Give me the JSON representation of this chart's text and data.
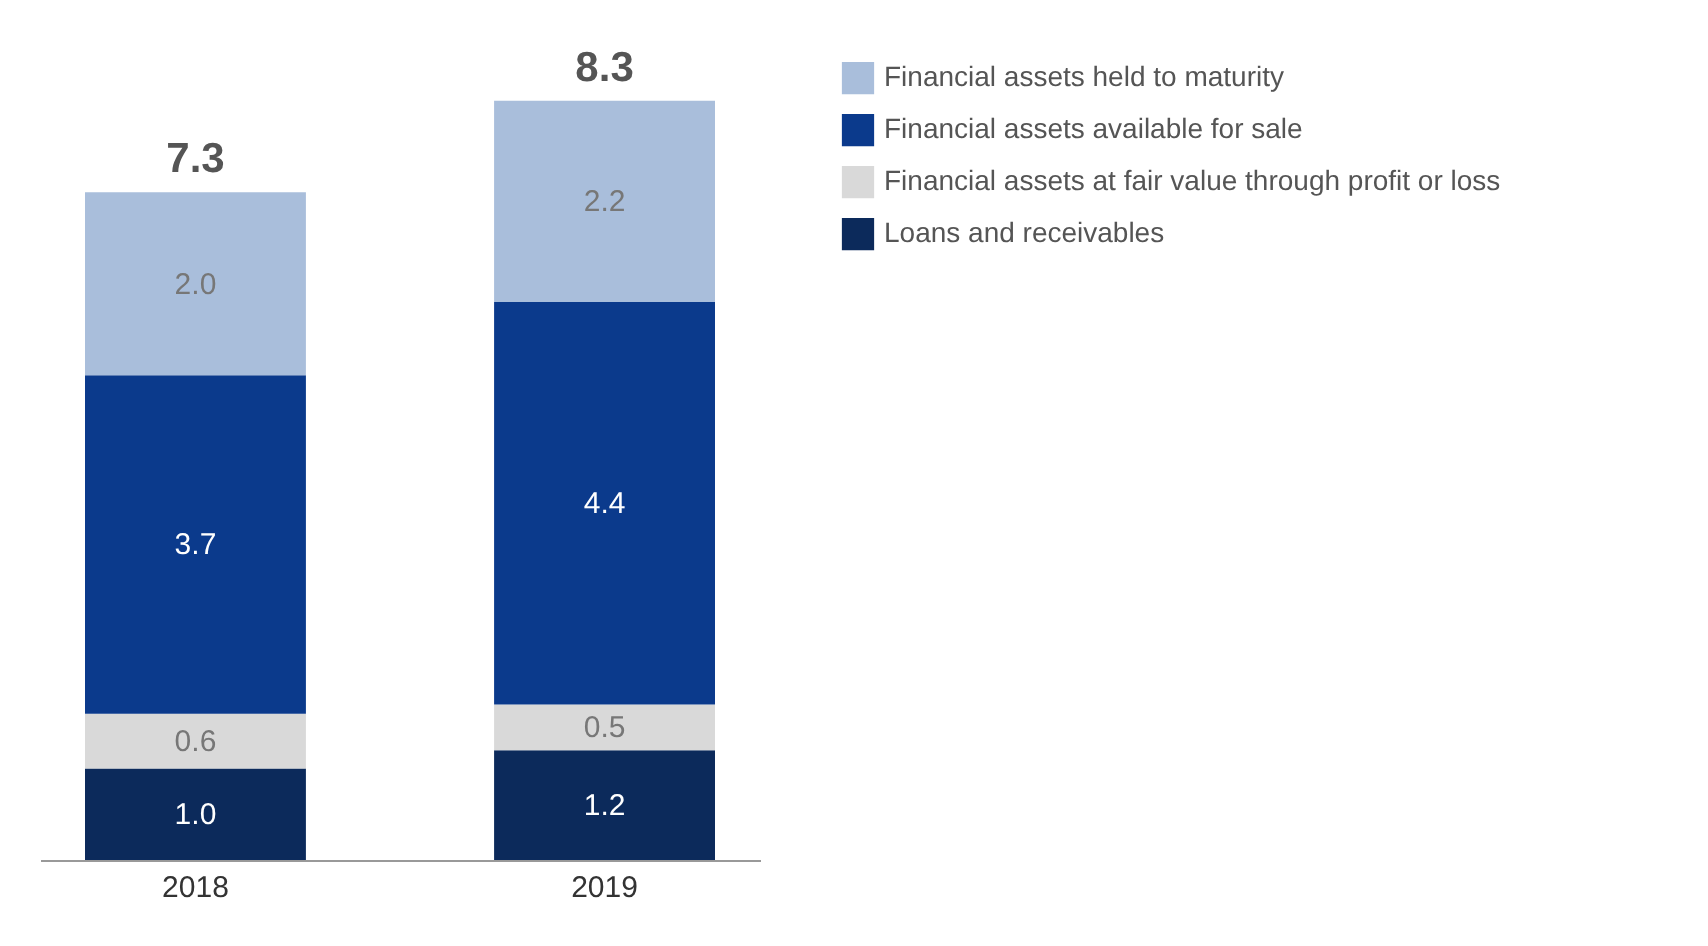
{
  "chart_data": {
    "type": "bar",
    "stacked": true,
    "categories": [
      "2018",
      "2019"
    ],
    "series": [
      {
        "name": "Loans and receivables",
        "color": "#0c2a5b",
        "values": [
          1.0,
          1.2
        ],
        "value_labels": [
          "1.0",
          "1.2"
        ]
      },
      {
        "name": "Financial assets at fair value through profit or loss",
        "color": "#d9d9d9",
        "values": [
          0.6,
          0.5
        ],
        "value_labels": [
          "0.6",
          "0.5"
        ]
      },
      {
        "name": "Financial assets available for sale",
        "color": "#0b3a8c",
        "values": [
          3.7,
          4.4
        ],
        "value_labels": [
          "3.7",
          "4.4"
        ]
      },
      {
        "name": "Financial assets held to maturity",
        "color": "#a9bedb",
        "values": [
          2.0,
          2.2
        ],
        "value_labels": [
          "2.0",
          "2.2"
        ]
      }
    ],
    "totals": [
      "7.3",
      "8.3"
    ],
    "legend": "top right",
    "tick_labels": "x"
  }
}
